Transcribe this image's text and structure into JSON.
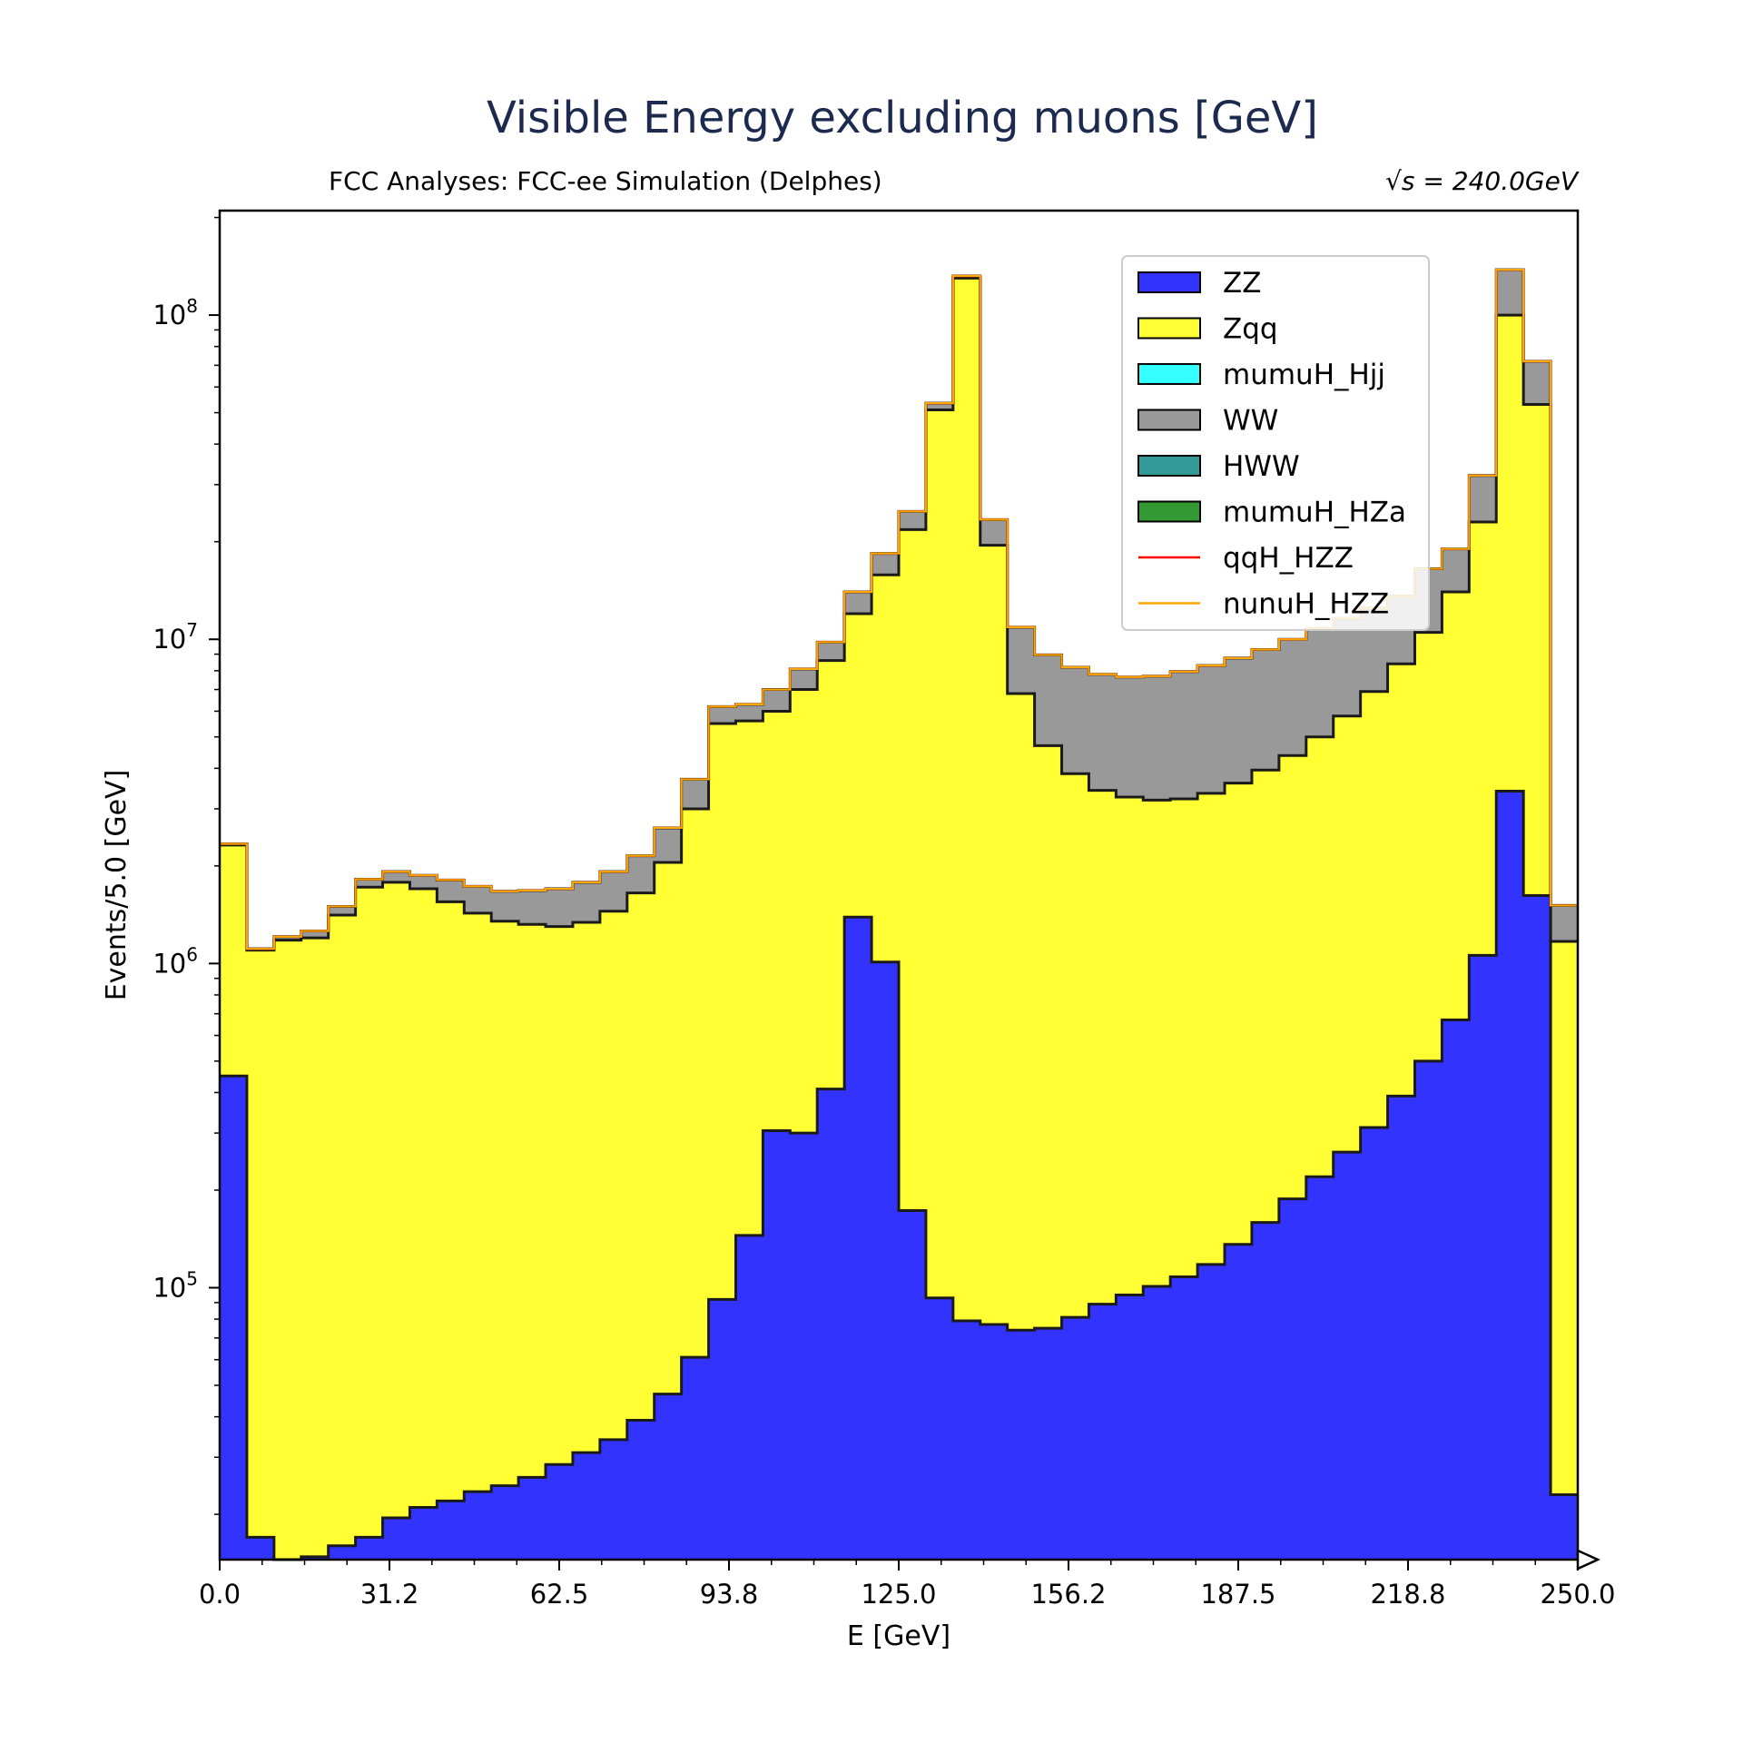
{
  "chart_data": {
    "type": "histogram-stacked-step",
    "title": "Visible Energy excluding muons [GeV]",
    "subtitle_left": "FCC Analyses: FCC-ee Simulation (Delphes)",
    "subtitle_right": "√s = 240.0GeV",
    "xlabel": "E [GeV]",
    "ylabel": "Events/5.0 [GeV]",
    "xlim": [
      0,
      250
    ],
    "ylim": [
      14500,
      210000000
    ],
    "yscale": "log",
    "bin_width": 5,
    "x_ticks": [
      "0.0",
      "31.2",
      "62.5",
      "93.8",
      "125.0",
      "156.2",
      "187.5",
      "218.8",
      "250.0"
    ],
    "y_ticks": [
      {
        "value": 100000,
        "base": "10",
        "exp": "5"
      },
      {
        "value": 1000000,
        "base": "10",
        "exp": "6"
      },
      {
        "value": 10000000,
        "base": "10",
        "exp": "7"
      },
      {
        "value": 100000000,
        "base": "10",
        "exp": "8"
      }
    ],
    "legend_position": "top-right",
    "legend": [
      {
        "name": "ZZ",
        "kind": "patch",
        "color": "#3333ff"
      },
      {
        "name": "Zqq",
        "kind": "patch",
        "color": "#ffff33"
      },
      {
        "name": "mumuH_Hjj",
        "kind": "patch",
        "color": "#33ffff"
      },
      {
        "name": "WW",
        "kind": "patch",
        "color": "#999999"
      },
      {
        "name": "HWW",
        "kind": "patch",
        "color": "#339999"
      },
      {
        "name": "mumuH_HZa",
        "kind": "patch",
        "color": "#339933"
      },
      {
        "name": "qqH_HZZ",
        "kind": "line",
        "color": "#ff0000"
      },
      {
        "name": "nunuH_HZZ",
        "kind": "line",
        "color": "#ffa500"
      }
    ],
    "stack_layers": [
      {
        "name": "ZZ",
        "color": "#3333ff",
        "values": [
          450000,
          17000,
          14500,
          14800,
          16000,
          17000,
          19500,
          21000,
          22000,
          23500,
          24500,
          26000,
          28500,
          31000,
          34000,
          39000,
          47000,
          61000,
          92000,
          145000,
          305000,
          300000,
          410000,
          1390000,
          1010000,
          173000,
          93000,
          79000,
          77000,
          74000,
          75000,
          81000,
          89000,
          95000,
          101000,
          108000,
          118000,
          136000,
          159000,
          188000,
          220000,
          262000,
          312000,
          390000,
          500000,
          670000,
          1060000,
          3400000,
          1620000,
          23000
        ]
      },
      {
        "name": "Zqq",
        "color": "#ffff33",
        "values": [
          2320000,
          1100000,
          1180000,
          1200000,
          1410000,
          1720000,
          1780000,
          1700000,
          1550000,
          1430000,
          1350000,
          1320000,
          1300000,
          1340000,
          1450000,
          1650000,
          2050000,
          3000000,
          5500000,
          5600000,
          6000000,
          7000000,
          8600000,
          12000000,
          15800000,
          21800000,
          51000000,
          130000000,
          19500000,
          6800000,
          4700000,
          3850000,
          3420000,
          3260000,
          3190000,
          3220000,
          3350000,
          3600000,
          3950000,
          4380000,
          5000000,
          5800000,
          6900000,
          8400000,
          10500000,
          14000000,
          23000000,
          100000000,
          53000000,
          1170000
        ]
      },
      {
        "name": "WW",
        "color": "#999999",
        "values": [
          2340000,
          1110000,
          1210000,
          1260000,
          1500000,
          1820000,
          1920000,
          1870000,
          1810000,
          1730000,
          1670000,
          1680000,
          1700000,
          1780000,
          1920000,
          2150000,
          2620000,
          3700000,
          6200000,
          6300000,
          7000000,
          8100000,
          9800000,
          14000000,
          18400000,
          24800000,
          53500000,
          132000000,
          23400000,
          10900000,
          8950000,
          8200000,
          7800000,
          7650000,
          7700000,
          7950000,
          8300000,
          8750000,
          9300000,
          10000000,
          10800000,
          11600000,
          12500000,
          13600000,
          16500000,
          19000000,
          32000000,
          138000000,
          72000000,
          1510000
        ]
      }
    ]
  }
}
